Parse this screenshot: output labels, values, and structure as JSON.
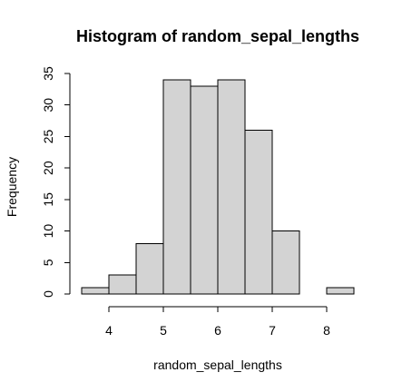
{
  "chart_data": {
    "type": "bar",
    "title": "Histogram of random_sepal_lengths",
    "xlabel": "random_sepal_lengths",
    "ylabel": "Frequency",
    "bins": [
      {
        "start": 3.5,
        "end": 4.0,
        "count": 1
      },
      {
        "start": 4.0,
        "end": 4.5,
        "count": 3
      },
      {
        "start": 4.5,
        "end": 5.0,
        "count": 8
      },
      {
        "start": 5.0,
        "end": 5.5,
        "count": 34
      },
      {
        "start": 5.5,
        "end": 6.0,
        "count": 33
      },
      {
        "start": 6.0,
        "end": 6.5,
        "count": 34
      },
      {
        "start": 6.5,
        "end": 7.0,
        "count": 26
      },
      {
        "start": 7.0,
        "end": 7.5,
        "count": 10
      },
      {
        "start": 7.5,
        "end": 8.0,
        "count": 0
      },
      {
        "start": 8.0,
        "end": 8.5,
        "count": 1
      }
    ],
    "xlim": [
      3.5,
      8.5
    ],
    "ylim": [
      0,
      35
    ],
    "x_ticks": [
      {
        "value": 4,
        "label": "4"
      },
      {
        "value": 5,
        "label": "5"
      },
      {
        "value": 6,
        "label": "6"
      },
      {
        "value": 7,
        "label": "7"
      },
      {
        "value": 8,
        "label": "8"
      }
    ],
    "y_ticks": [
      {
        "value": 0,
        "label": "0"
      },
      {
        "value": 5,
        "label": "5"
      },
      {
        "value": 10,
        "label": "10"
      },
      {
        "value": 15,
        "label": "15"
      },
      {
        "value": 20,
        "label": "20"
      },
      {
        "value": 25,
        "label": "25"
      },
      {
        "value": 30,
        "label": "30"
      },
      {
        "value": 35,
        "label": "35"
      }
    ],
    "bar_fill": "#d3d3d3",
    "bar_border": "#000000",
    "grid": false,
    "legend": "none"
  }
}
